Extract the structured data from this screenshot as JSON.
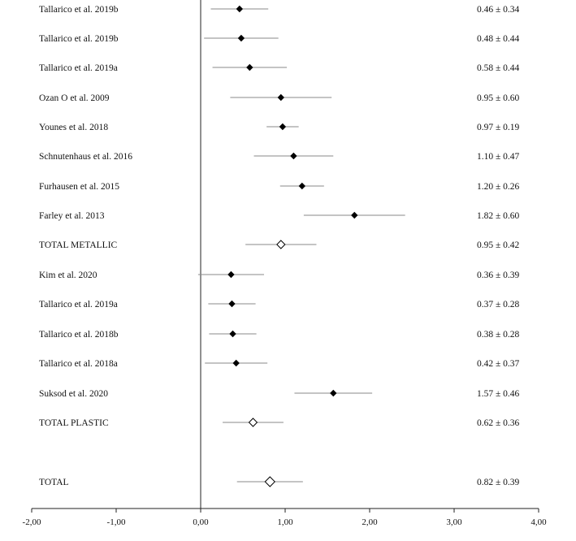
{
  "chart_data": {
    "type": "forest",
    "xlim": [
      -2,
      4
    ],
    "x_ticks": [
      -2,
      -1,
      0,
      1,
      2,
      3,
      4
    ],
    "x_tick_labels": [
      "-2,00",
      "-1,00",
      "0,00",
      "1,00",
      "2,00",
      "3,00",
      "4,00"
    ],
    "reference_line_x": 0,
    "grid": false,
    "rows": [
      {
        "label": "Tallarico et al. 2019b",
        "mean": 0.46,
        "sd": 0.34,
        "value_text": "0.46 ± 0.34",
        "kind": "study"
      },
      {
        "label": "Tallarico et al. 2019b",
        "mean": 0.48,
        "sd": 0.44,
        "value_text": "0.48 ± 0.44",
        "kind": "study"
      },
      {
        "label": "Tallarico et al. 2019a",
        "mean": 0.58,
        "sd": 0.44,
        "value_text": "0.58 ± 0.44",
        "kind": "study"
      },
      {
        "label": "Ozan O et al. 2009",
        "mean": 0.95,
        "sd": 0.6,
        "value_text": "0.95 ± 0.60",
        "kind": "study"
      },
      {
        "label": "Younes et al. 2018",
        "mean": 0.97,
        "sd": 0.19,
        "value_text": "0.97 ± 0.19",
        "kind": "study"
      },
      {
        "label": "Schnutenhaus et al. 2016",
        "mean": 1.1,
        "sd": 0.47,
        "value_text": "1.10 ± 0.47",
        "kind": "study"
      },
      {
        "label": "Furhausen et al. 2015",
        "mean": 1.2,
        "sd": 0.26,
        "value_text": "1.20 ± 0.26",
        "kind": "study"
      },
      {
        "label": "Farley et al. 2013",
        "mean": 1.82,
        "sd": 0.6,
        "value_text": "1.82 ± 0.60",
        "kind": "study"
      },
      {
        "label": "TOTAL METALLIC",
        "mean": 0.95,
        "sd": 0.42,
        "value_text": "0.95 ± 0.42",
        "kind": "subtotal"
      },
      {
        "label": "Kim et al. 2020",
        "mean": 0.36,
        "sd": 0.39,
        "value_text": "0.36 ± 0.39",
        "kind": "study"
      },
      {
        "label": "Tallarico et al. 2019a",
        "mean": 0.37,
        "sd": 0.28,
        "value_text": "0.37 ± 0.28",
        "kind": "study"
      },
      {
        "label": "Tallarico et al. 2018b",
        "mean": 0.38,
        "sd": 0.28,
        "value_text": "0.38 ± 0.28",
        "kind": "study"
      },
      {
        "label": "Tallarico et al. 2018a",
        "mean": 0.42,
        "sd": 0.37,
        "value_text": "0.42 ± 0.37",
        "kind": "study"
      },
      {
        "label": "Suksod et al. 2020",
        "mean": 1.57,
        "sd": 0.46,
        "value_text": "1.57 ± 0.46",
        "kind": "study"
      },
      {
        "label": "TOTAL PLASTIC",
        "mean": 0.62,
        "sd": 0.36,
        "value_text": "0.62 ± 0.36",
        "kind": "subtotal"
      },
      {
        "label": "TOTAL",
        "mean": 0.82,
        "sd": 0.39,
        "value_text": "0.82 ± 0.39",
        "kind": "total"
      }
    ],
    "colors": {
      "axis": "#222222",
      "marker": "#000000",
      "open_marker_fill": "#ffffff",
      "ci_line": "#8a8a8a"
    }
  }
}
